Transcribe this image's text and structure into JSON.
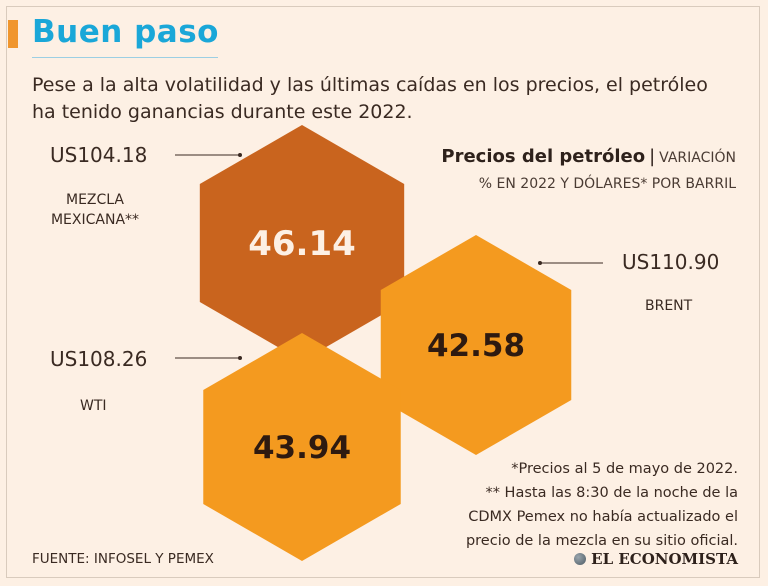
{
  "headline": "Buen paso",
  "intro": "Pese a la alta volatilidad y las últimas caídas en los precios, el petróleo ha tenido ganancias durante este 2022.",
  "chart_data": {
    "type": "hexagon-values",
    "title": "Precios del petróleo",
    "subtitle_line1": "VARIACIÓN",
    "subtitle_line2": "% EN 2022 Y DÓLARES* POR BARRIL",
    "unit": "% variation in 2022",
    "items": [
      {
        "name_lines": [
          "MEZCLA",
          "MEXICANA**"
        ],
        "price_label": "US104.18",
        "price": 104.18,
        "value": 46.14,
        "value_label": "46.14",
        "color": "#c9641e",
        "value_color": "#fdf0e4"
      },
      {
        "name_lines": [
          "BRENT"
        ],
        "price_label": "US110.90",
        "price": 110.9,
        "value": 42.58,
        "value_label": "42.58",
        "color": "#f49a1f",
        "value_color": "#2e1a10"
      },
      {
        "name_lines": [
          "WTI"
        ],
        "price_label": "US108.26",
        "price": 108.26,
        "value": 43.94,
        "value_label": "43.94",
        "color": "#f49a1f",
        "value_color": "#2e1a10"
      }
    ]
  },
  "footnotes": [
    "*Precios al 5 de mayo de 2022.",
    "** Hasta las 8:30 de la noche de la",
    "CDMX Pemex no había actualizado el",
    "precio de la mezcla en su sitio oficial."
  ],
  "source": "FUENTE: INFOSEL Y PEMEX",
  "brand": "EL ECONOMISTA",
  "colors": {
    "accent": "#f0962e",
    "headline": "#1aa7d8",
    "background": "#fdf0e4"
  }
}
